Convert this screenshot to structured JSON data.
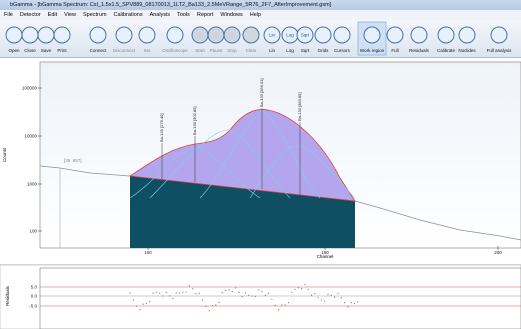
{
  "window": {
    "title": "bGamma - [bGamma Spectrum: CsI_1.5x1.5_SPV889_08170013_1LT2_Ba133_2.5MeVRange_5R76_2F7_AfterImprovement.gsm]"
  },
  "menu": [
    "File",
    "Detector",
    "Edit",
    "View",
    "Spectrum",
    "Calibrations",
    "Analysis",
    "Tools",
    "Report",
    "Windows",
    "Help"
  ],
  "toolbar": [
    "Open",
    "Close",
    "Save",
    "Print",
    "Connect",
    "Disconnect",
    "Set",
    "Oscilloscope",
    "Start",
    "Pause",
    "Stop",
    "Clear",
    "Lin",
    "Log",
    "Sqrt",
    "Grids",
    "Cursors",
    "Work region",
    "Full",
    "Residuals",
    "Calibrate",
    "Nuclides",
    "Full analysis"
  ],
  "icons": {
    "lin": "Lin",
    "log": "Log",
    "sqrt": "Sqrt"
  },
  "spectrum": {
    "y_label": "Counts",
    "x_label": "Channel",
    "yticks": [
      "100000",
      "10000",
      "1000",
      "100"
    ],
    "xticks": [
      "100",
      "150",
      "200"
    ],
    "baseline_label": "[35, 857]",
    "peaks": [
      "Ba-133 [276.40]",
      "Ba-133 [302.85]",
      "Ba-133 [356.01]",
      "Ba-133 [383.85]"
    ]
  },
  "residuals": {
    "y_label": "Residuals",
    "yticks": [
      "5.0",
      "0.0",
      "-5.0"
    ]
  }
}
